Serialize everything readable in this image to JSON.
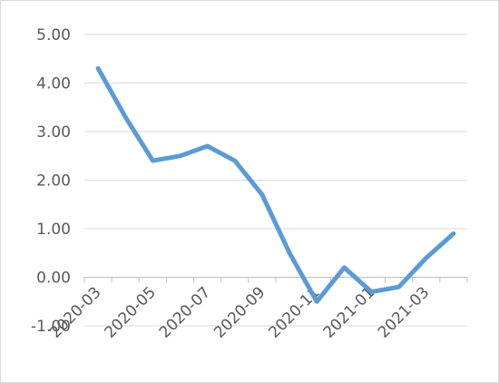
{
  "chart_data": {
    "type": "line",
    "x": [
      "2020-03",
      "2020-04",
      "2020-05",
      "2020-06",
      "2020-07",
      "2020-08",
      "2020-09",
      "2020-10",
      "2020-11",
      "2020-12",
      "2021-01",
      "2021-02",
      "2021-03",
      "2021-04"
    ],
    "x_tick_labels": [
      "2020-03",
      "2020-05",
      "2020-07",
      "2020-09",
      "2020-11",
      "2021-01",
      "2021-03"
    ],
    "y_tick_labels": [
      "5.00",
      "4.00",
      "3.00",
      "2.00",
      "1.00",
      "0.00",
      "-1.00"
    ],
    "series": [
      {
        "values": [
          4.3,
          3.3,
          2.4,
          2.5,
          2.7,
          2.4,
          1.7,
          0.5,
          -0.5,
          0.2,
          -0.3,
          -0.2,
          0.4,
          0.9
        ]
      }
    ],
    "ylim": [
      -1,
      5
    ],
    "grid": true,
    "legend": "none",
    "line_color": "#5b9bd5"
  }
}
